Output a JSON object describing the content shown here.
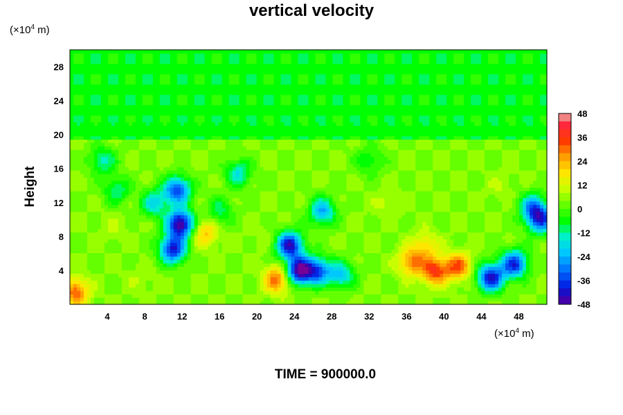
{
  "chart_data": {
    "type": "heatmap",
    "title": "vertical velocity",
    "ylabel": "Height",
    "x_unit_prefix": "(×10",
    "x_unit_exp": "4",
    "x_unit_suffix": " m)",
    "y_unit_prefix": "(×10",
    "y_unit_exp": "4",
    "y_unit_suffix": " m)",
    "xlim": [
      0,
      51
    ],
    "ylim": [
      0,
      30
    ],
    "x_ticks": [
      4,
      8,
      12,
      16,
      20,
      24,
      28,
      32,
      36,
      40,
      44,
      48
    ],
    "y_ticks": [
      4,
      8,
      12,
      16,
      20,
      24,
      28
    ],
    "colorbar": {
      "range": [
        -48,
        48
      ],
      "step": 4,
      "ticks": [
        48,
        36,
        24,
        12,
        0,
        -12,
        -24,
        -36,
        -48
      ]
    },
    "background_value": 0,
    "upper_layer_value": -4,
    "lower_layer_value": 6,
    "lower_layer_top": 19.5,
    "features": [
      {
        "x": 11.8,
        "y": 9.5,
        "value": -48
      },
      {
        "x": 11.5,
        "y": 13.5,
        "value": -34
      },
      {
        "x": 11.0,
        "y": 6.5,
        "value": -38
      },
      {
        "x": 9.0,
        "y": 12.0,
        "value": -16
      },
      {
        "x": 24.5,
        "y": 4.0,
        "value": -46
      },
      {
        "x": 23.5,
        "y": 7.0,
        "value": -40
      },
      {
        "x": 26.5,
        "y": 4.0,
        "value": -30
      },
      {
        "x": 27.0,
        "y": 11.0,
        "value": -22
      },
      {
        "x": 29.0,
        "y": 3.5,
        "value": -18
      },
      {
        "x": 39.0,
        "y": 4.0,
        "value": 38
      },
      {
        "x": 36.5,
        "y": 5.0,
        "value": 30
      },
      {
        "x": 41.5,
        "y": 4.5,
        "value": 34
      },
      {
        "x": 38.0,
        "y": 7.0,
        "value": 20
      },
      {
        "x": 45.0,
        "y": 3.2,
        "value": -40
      },
      {
        "x": 47.5,
        "y": 4.8,
        "value": -36
      },
      {
        "x": 50.3,
        "y": 10.0,
        "value": -32
      },
      {
        "x": 49.5,
        "y": 11.5,
        "value": -22
      },
      {
        "x": 14.5,
        "y": 8.5,
        "value": 24
      },
      {
        "x": 0.6,
        "y": 1.5,
        "value": 34
      },
      {
        "x": 22.2,
        "y": 3.0,
        "value": 34
      },
      {
        "x": 4.5,
        "y": 9.0,
        "value": 10
      },
      {
        "x": 5.0,
        "y": 13.5,
        "value": -10
      },
      {
        "x": 18.0,
        "y": 15.5,
        "value": -14
      },
      {
        "x": 16.0,
        "y": 11.0,
        "value": -8
      },
      {
        "x": 34.0,
        "y": 12.0,
        "value": 12
      },
      {
        "x": 46.0,
        "y": 14.0,
        "value": 10
      },
      {
        "x": 7.5,
        "y": 3.0,
        "value": 10
      },
      {
        "x": 3.5,
        "y": 17.0,
        "value": -12
      },
      {
        "x": 20.5,
        "y": 8.0,
        "value": 8
      },
      {
        "x": 32.0,
        "y": 17.0,
        "value": -6
      }
    ]
  },
  "footer": {
    "time_label": "TIME = 900000.0"
  }
}
